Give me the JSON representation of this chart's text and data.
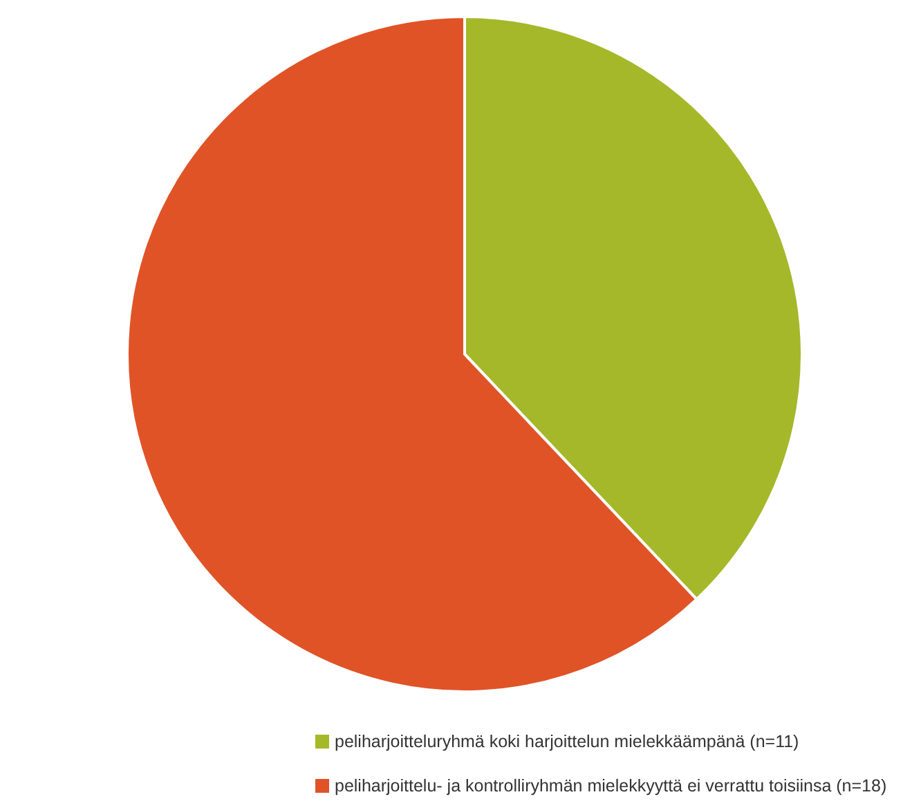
{
  "chart_data": {
    "type": "pie",
    "categories": [
      "peliharjoitteluryhmä koki harjoittelun mielekkäämpänä (n=11)",
      "peliharjoittelu- ja kontrolliryhmän mielekkyyttä ei verrattu toisiinsa (n=18)"
    ],
    "values": [
      11,
      18
    ],
    "colors": [
      "#a5b82a",
      "#e05327"
    ],
    "legend": "bottom"
  }
}
